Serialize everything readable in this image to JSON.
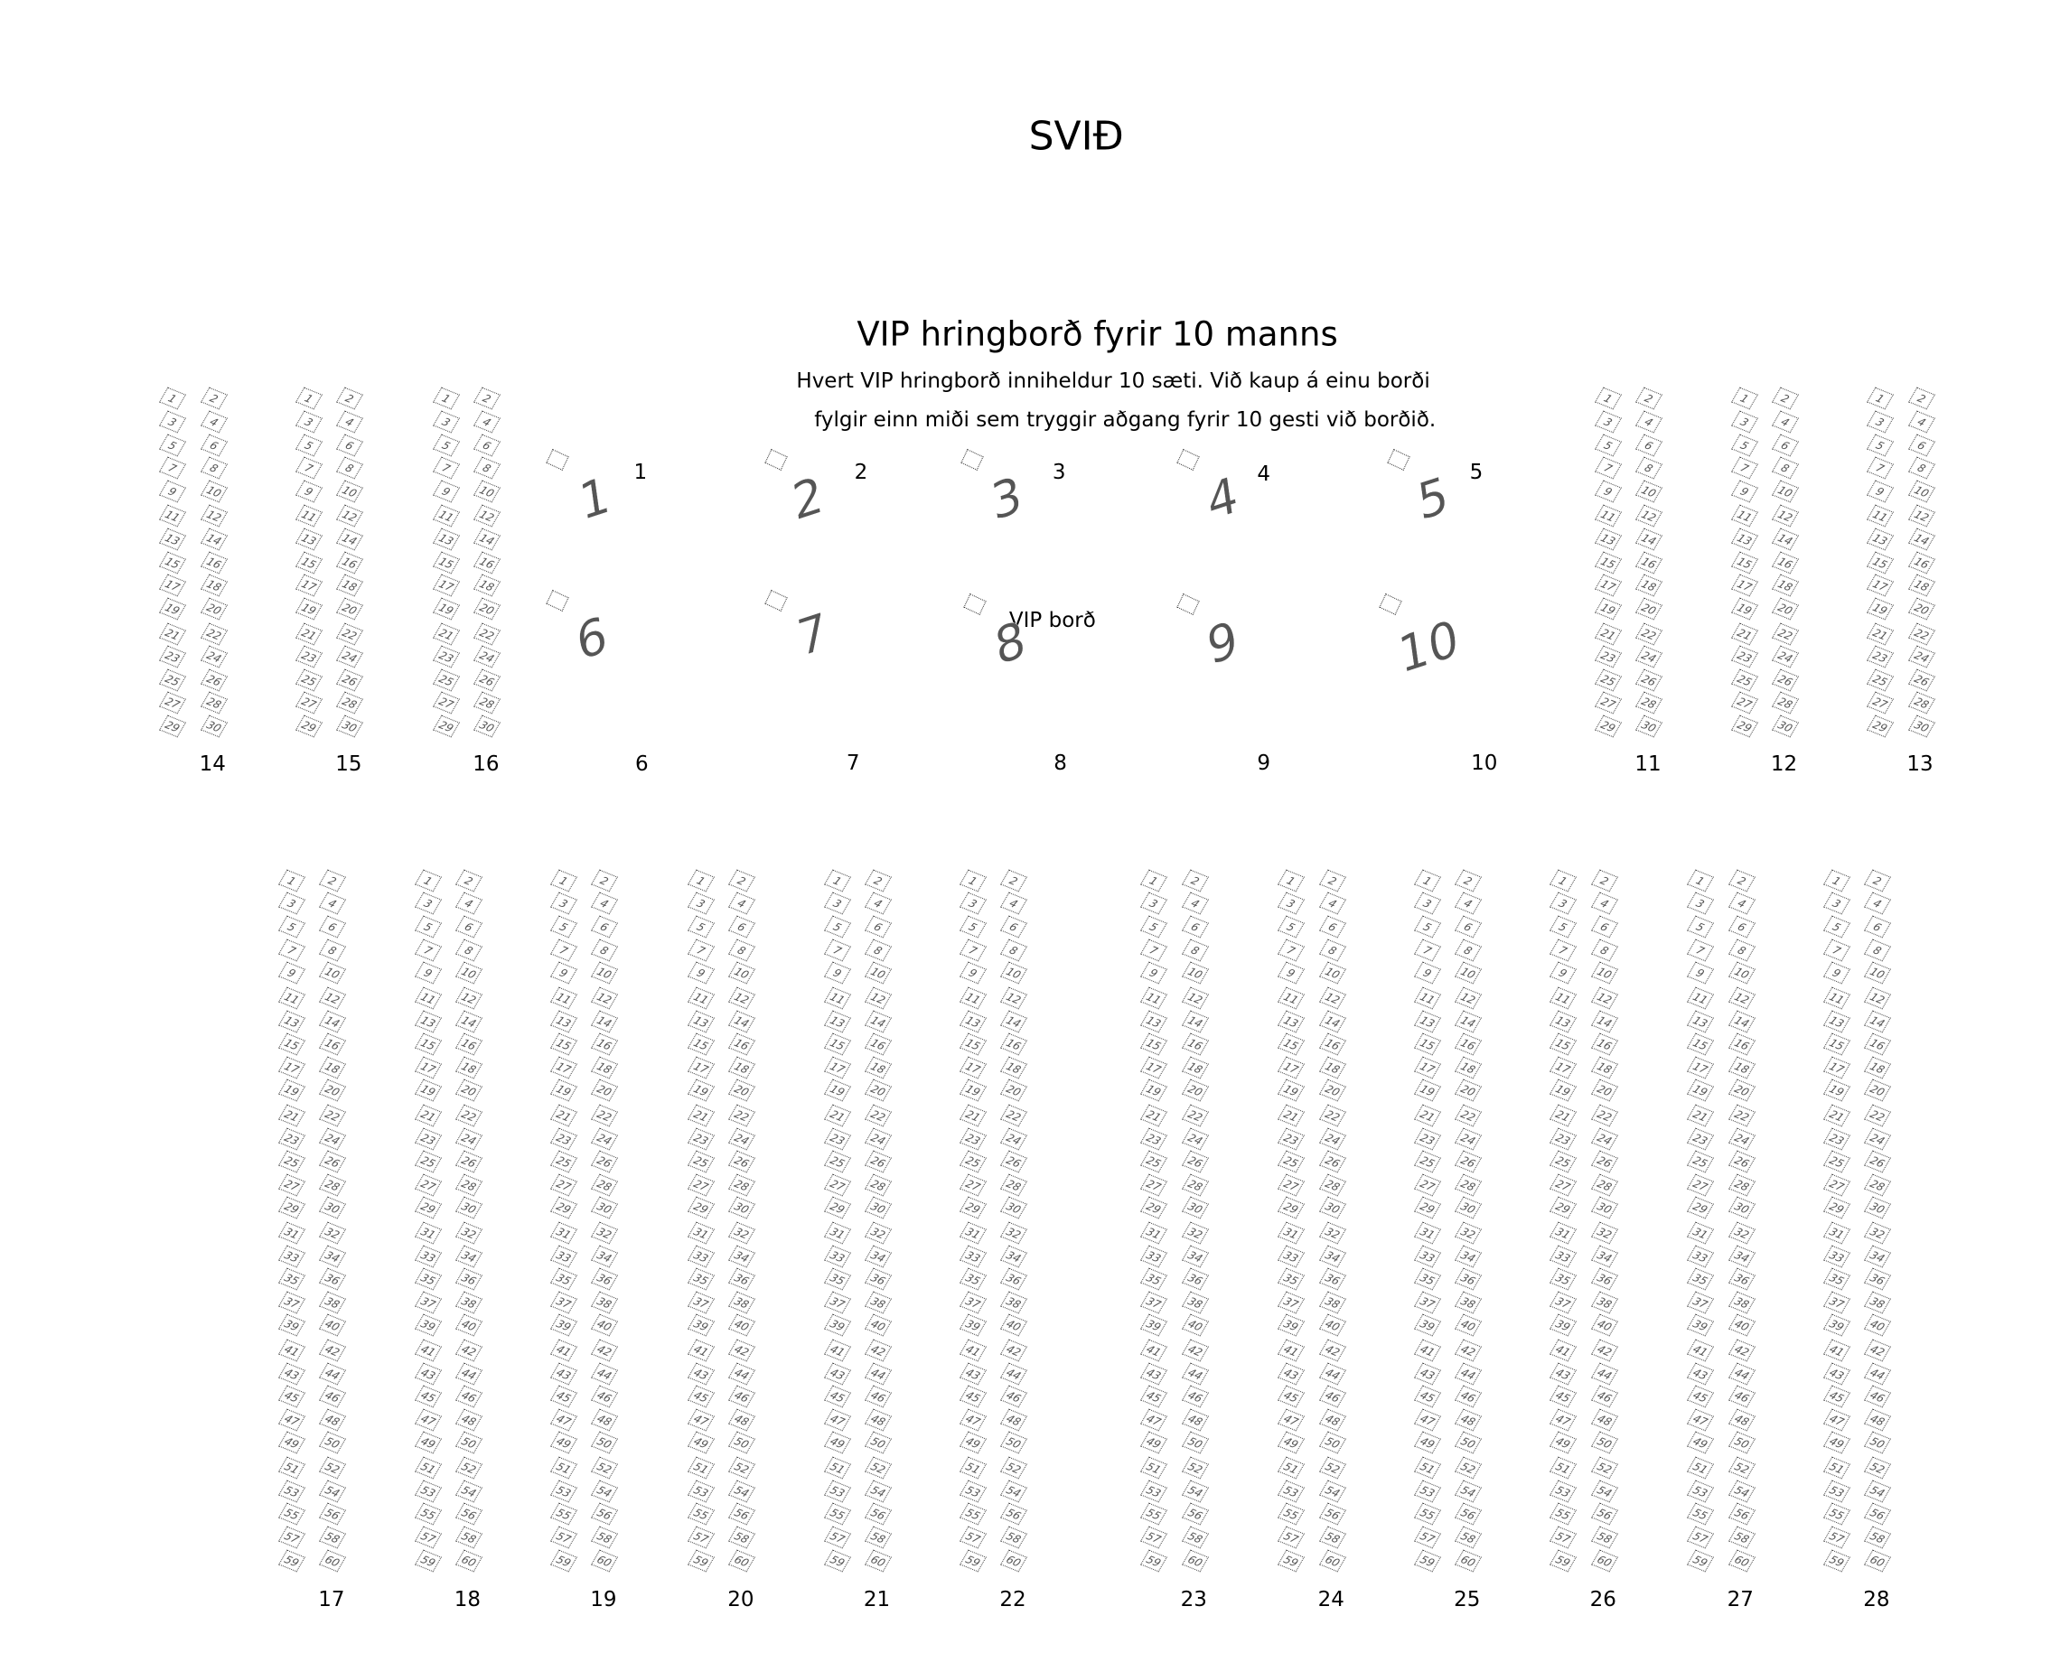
{
  "stage_label": "SVIÐ",
  "vip": {
    "title": "VIP hringborð fyrir 10 manns",
    "description": [
      "Hvert VIP hringborð inniheldur 10 sæti. Við kaup á einu borði",
      "fylgir einn miði sem tryggir aðgang fyrir 10 gesti við borðið."
    ],
    "table_label": "VIP borð",
    "tables": [
      "1",
      "2",
      "3",
      "4",
      "5",
      "6",
      "7",
      "8",
      "9",
      "10"
    ]
  },
  "sections_top": [
    {
      "label": "14",
      "seats": 30
    },
    {
      "label": "15",
      "seats": 30
    },
    {
      "label": "16",
      "seats": 30
    },
    {
      "label": "11",
      "seats": 30
    },
    {
      "label": "12",
      "seats": 30
    },
    {
      "label": "13",
      "seats": 30
    }
  ],
  "sections_bottom": [
    {
      "label": "17",
      "seats": 60
    },
    {
      "label": "18",
      "seats": 60
    },
    {
      "label": "19",
      "seats": 60
    },
    {
      "label": "20",
      "seats": 60
    },
    {
      "label": "21",
      "seats": 60
    },
    {
      "label": "22",
      "seats": 60
    },
    {
      "label": "23",
      "seats": 60
    },
    {
      "label": "24",
      "seats": 60
    },
    {
      "label": "25",
      "seats": 60
    },
    {
      "label": "26",
      "seats": 60
    },
    {
      "label": "27",
      "seats": 60
    },
    {
      "label": "28",
      "seats": 60
    }
  ]
}
